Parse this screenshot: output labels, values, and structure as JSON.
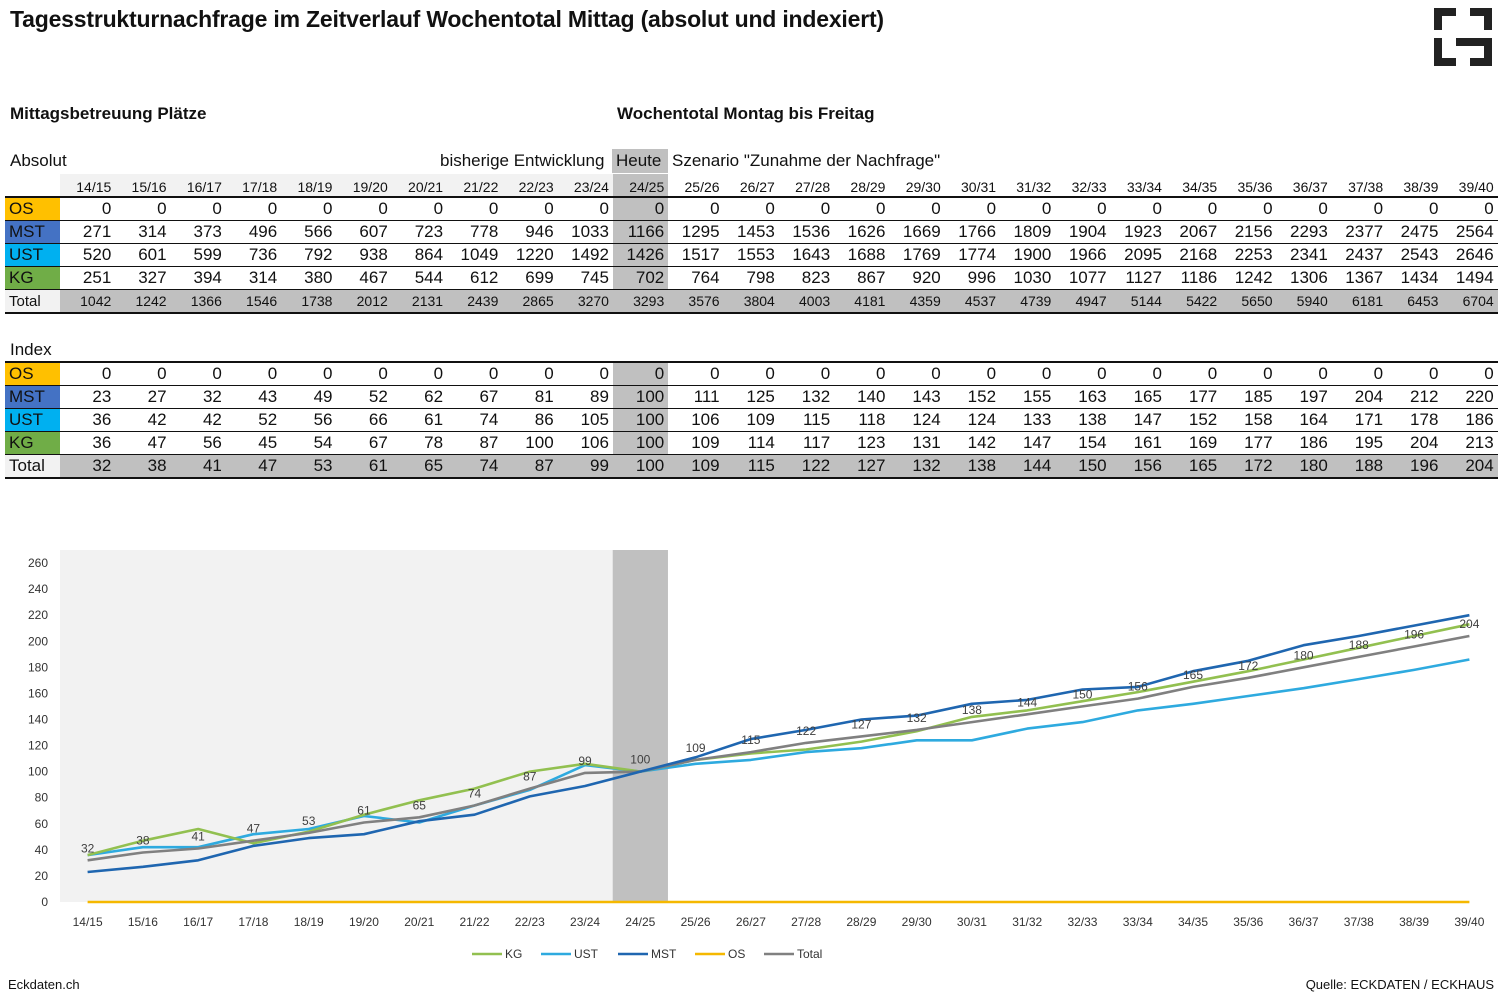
{
  "title": "Tagesstrukturnachfrage im Zeitverlauf Wochentotal Mittag (absolut und indexiert)",
  "section_left": "Mittagsbetreuung Plätze",
  "section_right": "Wochentotal Montag bis Freitag",
  "absolut_label": "Absolut",
  "index_label": "Index",
  "bisherige_label": "bisherige Entwicklung",
  "heute_label": "Heute",
  "szenario_label": "Szenario \"Zunahme der Nachfrage\"",
  "years": [
    "14/15",
    "15/16",
    "16/17",
    "17/18",
    "18/19",
    "19/20",
    "20/21",
    "21/22",
    "22/23",
    "23/24",
    "24/25",
    "25/26",
    "26/27",
    "27/28",
    "28/29",
    "29/30",
    "30/31",
    "31/32",
    "32/33",
    "33/34",
    "34/35",
    "35/36",
    "36/37",
    "37/38",
    "38/39",
    "39/40"
  ],
  "colors": {
    "OS": "#ffc000",
    "MST": "#4472c4",
    "UST": "#00b0f0",
    "KG": "#70ad47",
    "past_bg": "#f2f2f2",
    "heute_bg": "#c0c0c0",
    "line_KG": "#92c050",
    "line_UST": "#2eaadf",
    "line_MST": "#1f66b0",
    "line_OS": "#f5b800",
    "line_Total": "#808080"
  },
  "absolut": [
    {
      "label": "OS",
      "values": [
        0,
        0,
        0,
        0,
        0,
        0,
        0,
        0,
        0,
        0,
        0,
        0,
        0,
        0,
        0,
        0,
        0,
        0,
        0,
        0,
        0,
        0,
        0,
        0,
        0,
        0
      ]
    },
    {
      "label": "MST",
      "values": [
        271,
        314,
        373,
        496,
        566,
        607,
        723,
        778,
        946,
        1033,
        1166,
        1295,
        1453,
        1536,
        1626,
        1669,
        1766,
        1809,
        1904,
        1923,
        2067,
        2156,
        2293,
        2377,
        2475,
        2564
      ]
    },
    {
      "label": "UST",
      "values": [
        520,
        601,
        599,
        736,
        792,
        938,
        864,
        1049,
        1220,
        1492,
        1426,
        1517,
        1553,
        1643,
        1688,
        1769,
        1774,
        1900,
        1966,
        2095,
        2168,
        2253,
        2341,
        2437,
        2543,
        2646
      ]
    },
    {
      "label": "KG",
      "values": [
        251,
        327,
        394,
        314,
        380,
        467,
        544,
        612,
        699,
        745,
        702,
        764,
        798,
        823,
        867,
        920,
        996,
        1030,
        1077,
        1127,
        1186,
        1242,
        1306,
        1367,
        1434,
        1494
      ]
    },
    {
      "label": "Total",
      "values": [
        1042,
        1242,
        1366,
        1546,
        1738,
        2012,
        2131,
        2439,
        2865,
        3270,
        3293,
        3576,
        3804,
        4003,
        4181,
        4359,
        4537,
        4739,
        4947,
        5144,
        5422,
        5650,
        5940,
        6181,
        6453,
        6704
      ]
    }
  ],
  "index": [
    {
      "label": "OS",
      "values": [
        0,
        0,
        0,
        0,
        0,
        0,
        0,
        0,
        0,
        0,
        0,
        0,
        0,
        0,
        0,
        0,
        0,
        0,
        0,
        0,
        0,
        0,
        0,
        0,
        0,
        0
      ]
    },
    {
      "label": "MST",
      "values": [
        23,
        27,
        32,
        43,
        49,
        52,
        62,
        67,
        81,
        89,
        100,
        111,
        125,
        132,
        140,
        143,
        152,
        155,
        163,
        165,
        177,
        185,
        197,
        204,
        212,
        220
      ]
    },
    {
      "label": "UST",
      "values": [
        36,
        42,
        42,
        52,
        56,
        66,
        61,
        74,
        86,
        105,
        100,
        106,
        109,
        115,
        118,
        124,
        124,
        133,
        138,
        147,
        152,
        158,
        164,
        171,
        178,
        186
      ]
    },
    {
      "label": "KG",
      "values": [
        36,
        47,
        56,
        45,
        54,
        67,
        78,
        87,
        100,
        106,
        100,
        109,
        114,
        117,
        123,
        131,
        142,
        147,
        154,
        161,
        169,
        177,
        186,
        195,
        204,
        213
      ]
    },
    {
      "label": "Total",
      "values": [
        32,
        38,
        41,
        47,
        53,
        61,
        65,
        74,
        87,
        99,
        100,
        109,
        115,
        122,
        127,
        132,
        138,
        144,
        150,
        156,
        165,
        172,
        180,
        188,
        196,
        204
      ]
    }
  ],
  "chart_data": {
    "type": "line",
    "x": [
      "14/15",
      "15/16",
      "16/17",
      "17/18",
      "18/19",
      "19/20",
      "20/21",
      "21/22",
      "22/23",
      "23/24",
      "24/25",
      "25/26",
      "26/27",
      "27/28",
      "28/29",
      "29/30",
      "30/31",
      "31/32",
      "32/33",
      "33/34",
      "34/35",
      "35/36",
      "36/37",
      "37/38",
      "38/39",
      "39/40"
    ],
    "yticks": [
      0,
      20,
      40,
      60,
      80,
      100,
      120,
      140,
      160,
      180,
      200,
      220,
      240,
      260
    ],
    "ylim": [
      0,
      270
    ],
    "highlight_category": "24/25",
    "series": [
      {
        "name": "KG",
        "values": [
          36,
          47,
          56,
          45,
          54,
          67,
          78,
          87,
          100,
          106,
          100,
          109,
          114,
          117,
          123,
          131,
          142,
          147,
          154,
          161,
          169,
          177,
          186,
          195,
          204,
          213
        ]
      },
      {
        "name": "UST",
        "values": [
          36,
          42,
          42,
          52,
          56,
          66,
          61,
          74,
          86,
          105,
          100,
          106,
          109,
          115,
          118,
          124,
          124,
          133,
          138,
          147,
          152,
          158,
          164,
          171,
          178,
          186
        ]
      },
      {
        "name": "MST",
        "values": [
          23,
          27,
          32,
          43,
          49,
          52,
          62,
          67,
          81,
          89,
          100,
          111,
          125,
          132,
          140,
          143,
          152,
          155,
          163,
          165,
          177,
          185,
          197,
          204,
          212,
          220
        ]
      },
      {
        "name": "OS",
        "values": [
          0,
          0,
          0,
          0,
          0,
          0,
          0,
          0,
          0,
          0,
          0,
          0,
          0,
          0,
          0,
          0,
          0,
          0,
          0,
          0,
          0,
          0,
          0,
          0,
          0,
          0
        ]
      },
      {
        "name": "Total",
        "values": [
          32,
          38,
          41,
          47,
          53,
          61,
          65,
          74,
          87,
          99,
          100,
          109,
          115,
          122,
          127,
          132,
          138,
          144,
          150,
          156,
          165,
          172,
          180,
          188,
          196,
          204
        ]
      }
    ],
    "data_labels_series": "Total",
    "legend": [
      "KG",
      "UST",
      "MST",
      "OS",
      "Total"
    ],
    "legend_position": "bottom"
  },
  "footer_left": "Eckdaten.ch",
  "footer_right": "Quelle: ECKDATEN / ECKHAUS"
}
